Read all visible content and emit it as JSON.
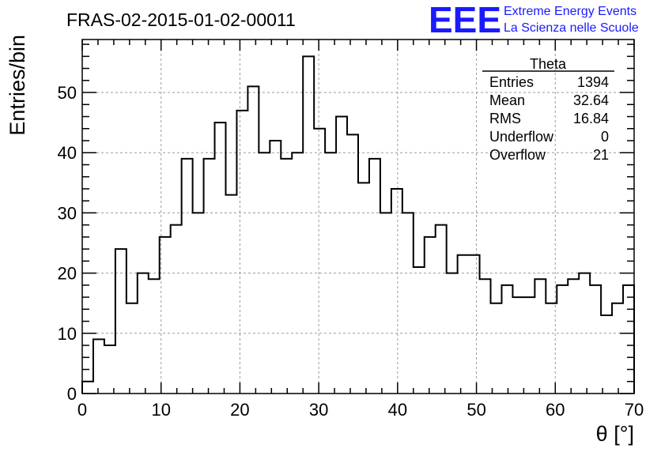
{
  "chart_data": {
    "type": "bar",
    "title": "FRAS-02-2015-01-02-00011",
    "xlabel": "θ [°]",
    "ylabel": "Entries/bin",
    "xlim": [
      0,
      70
    ],
    "ylim": [
      0,
      58.8
    ],
    "grid": true,
    "bin_width": 1.4,
    "x_ticks": [
      0,
      10,
      20,
      30,
      40,
      50,
      60,
      70
    ],
    "y_ticks": [
      0,
      10,
      20,
      30,
      40,
      50
    ],
    "values": [
      2,
      9,
      8,
      24,
      15,
      20,
      19,
      26,
      28,
      39,
      30,
      39,
      45,
      33,
      47,
      51,
      40,
      42,
      39,
      40,
      56,
      44,
      40,
      46,
      43,
      35,
      39,
      30,
      34,
      30,
      21,
      26,
      28,
      20,
      23,
      23,
      19,
      15,
      18,
      16,
      16,
      19,
      15,
      18,
      19,
      20,
      18,
      13,
      15,
      18
    ],
    "color": "#000000"
  },
  "stats": {
    "title": "Theta",
    "rows": [
      {
        "label": "Entries",
        "value": "1394"
      },
      {
        "label": "Mean",
        "value": "32.64"
      },
      {
        "label": "RMS",
        "value": "16.84"
      },
      {
        "label": "Underflow",
        "value": "0"
      },
      {
        "label": "Overflow",
        "value": "21"
      }
    ]
  },
  "logo": {
    "mark": "EEE",
    "line1": "Extreme Energy Events",
    "line2": "La Scienza nelle Scuole",
    "color": "#1a1aff"
  }
}
